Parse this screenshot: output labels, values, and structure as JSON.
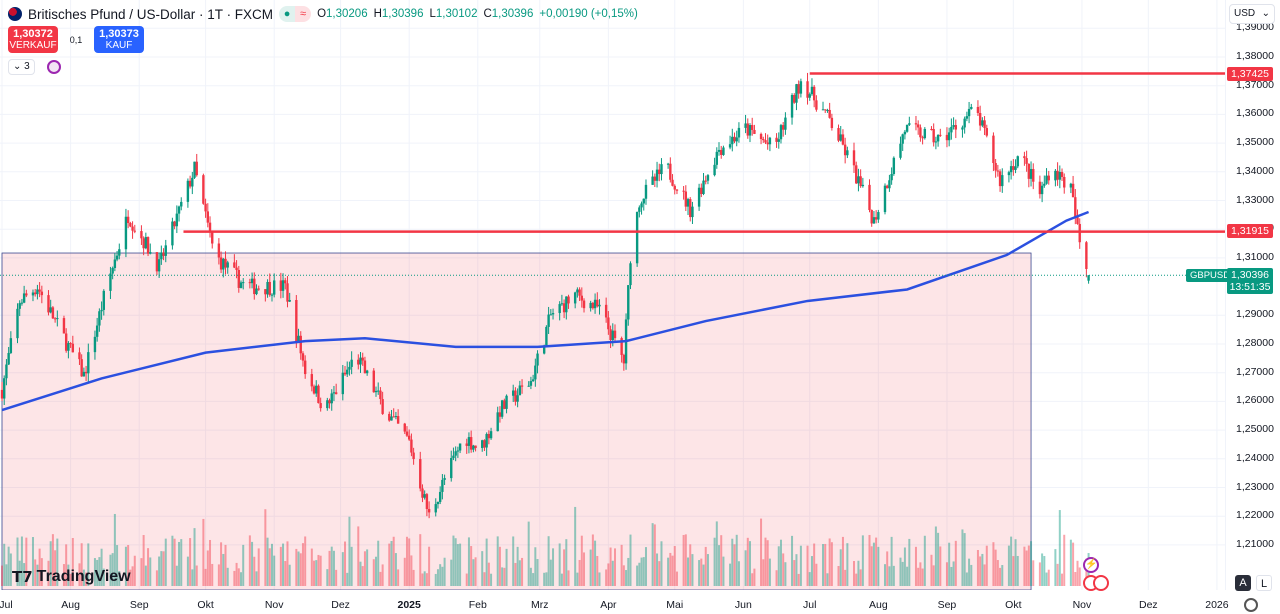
{
  "header": {
    "title": "Britisches Pfund / US-Dollar · 1T · FXCM",
    "symbol_icon": "gbp-usd-flag-icon",
    "open_label": "O",
    "open": "1,30206",
    "high_label": "H",
    "high": "1,30396",
    "low_label": "L",
    "low": "1,30102",
    "close_label": "C",
    "close": "1,30396",
    "change": "+0,00190 (+0,15%)"
  },
  "trade": {
    "sell_price": "1,30372",
    "sell_label": "VERKAUF",
    "spread": "0,1",
    "buy_price": "1,30373",
    "buy_label": "KAUF"
  },
  "indicators_count": "3",
  "currency": "USD",
  "price_axis": [
    "1,39000",
    "1,38000",
    "1,37000",
    "1,36000",
    "1,35000",
    "1,34000",
    "1,33000",
    "1,32000",
    "1,31000",
    "1,29000",
    "1,28000",
    "1,27000",
    "1,26000",
    "1,25000",
    "1,24000",
    "1,23000",
    "1,22000",
    "1,21000"
  ],
  "levels": {
    "upper": "1,37425",
    "lower": "1,31915"
  },
  "current": {
    "symbol": "GBPUSD",
    "price": "1,30396",
    "countdown": "13:51:35"
  },
  "time_axis": [
    "Jul",
    "Aug",
    "Sep",
    "Okt",
    "Nov",
    "Dez",
    "2025",
    "Feb",
    "Mrz",
    "Apr",
    "Mai",
    "Jun",
    "Jul",
    "Aug",
    "Sep",
    "Okt",
    "Nov",
    "Dez",
    "2026"
  ],
  "scale_buttons": {
    "auto": "A",
    "log": "L"
  },
  "logo": "TradingView",
  "colors": {
    "up": "#089981",
    "down": "#f23645",
    "ma": "#2b50e0",
    "level": "#f23645",
    "box": "#f23645"
  },
  "chart_data": {
    "type": "candlestick",
    "interval": "1D",
    "close_path": [
      [
        "2024-07-01",
        1.264
      ],
      [
        "2024-07-09",
        1.295
      ],
      [
        "2024-07-17",
        1.3
      ],
      [
        "2024-07-27",
        1.285
      ],
      [
        "2024-08-07",
        1.269
      ],
      [
        "2024-08-17",
        1.299
      ],
      [
        "2024-08-27",
        1.325
      ],
      [
        "2024-09-10",
        1.307
      ],
      [
        "2024-09-26",
        1.341
      ],
      [
        "2024-10-05",
        1.311
      ],
      [
        "2024-10-19",
        1.3
      ],
      [
        "2024-11-06",
        1.3
      ],
      [
        "2024-11-15",
        1.271
      ],
      [
        "2024-11-24",
        1.257
      ],
      [
        "2024-12-08",
        1.276
      ],
      [
        "2024-12-21",
        1.257
      ],
      [
        "2025-01-01",
        1.246
      ],
      [
        "2025-01-10",
        1.22
      ],
      [
        "2025-01-17",
        1.233
      ],
      [
        "2025-01-26",
        1.248
      ],
      [
        "2025-02-02",
        1.243
      ],
      [
        "2025-02-11",
        1.257
      ],
      [
        "2025-02-25",
        1.267
      ],
      [
        "2025-03-06",
        1.29
      ],
      [
        "2025-03-17",
        1.297
      ],
      [
        "2025-03-28",
        1.292
      ],
      [
        "2025-04-08",
        1.274
      ],
      [
        "2025-04-11",
        1.311
      ],
      [
        "2025-04-15",
        1.33
      ],
      [
        "2025-04-27",
        1.342
      ],
      [
        "2025-05-08",
        1.327
      ],
      [
        "2025-05-21",
        1.348
      ],
      [
        "2025-06-02",
        1.355
      ],
      [
        "2025-06-15",
        1.348
      ],
      [
        "2025-06-27",
        1.372
      ],
      [
        "2025-07-10",
        1.358
      ],
      [
        "2025-07-19",
        1.344
      ],
      [
        "2025-07-30",
        1.323
      ],
      [
        "2025-08-13",
        1.355
      ],
      [
        "2025-08-29",
        1.351
      ],
      [
        "2025-09-14",
        1.362
      ],
      [
        "2025-09-25",
        1.337
      ],
      [
        "2025-10-04",
        1.346
      ],
      [
        "2025-10-13",
        1.332
      ],
      [
        "2025-10-18",
        1.342
      ],
      [
        "2025-10-27",
        1.334
      ],
      [
        "2025-10-31",
        1.315
      ],
      [
        "2025-11-04",
        1.30396
      ]
    ],
    "moving_average": [
      [
        "2024-07-01",
        1.257
      ],
      [
        "2024-08-15",
        1.268
      ],
      [
        "2024-10-01",
        1.277
      ],
      [
        "2024-11-15",
        1.281
      ],
      [
        "2024-12-12",
        1.282
      ],
      [
        "2025-01-22",
        1.279
      ],
      [
        "2025-02-28",
        1.279
      ],
      [
        "2025-04-09",
        1.281
      ],
      [
        "2025-05-15",
        1.288
      ],
      [
        "2025-06-30",
        1.295
      ],
      [
        "2025-08-14",
        1.299
      ],
      [
        "2025-09-28",
        1.311
      ],
      [
        "2025-10-25",
        1.323
      ],
      [
        "2025-11-04",
        1.326
      ]
    ],
    "horizontal_lines": [
      {
        "price": 1.37425,
        "from": "2025-07-01"
      },
      {
        "price": 1.31915,
        "from": "2024-09-21"
      }
    ],
    "box": {
      "top": 1.3117,
      "from": "2024-07-01",
      "to": "2025-10-09"
    },
    "ylim": [
      1.2,
      1.39
    ]
  }
}
